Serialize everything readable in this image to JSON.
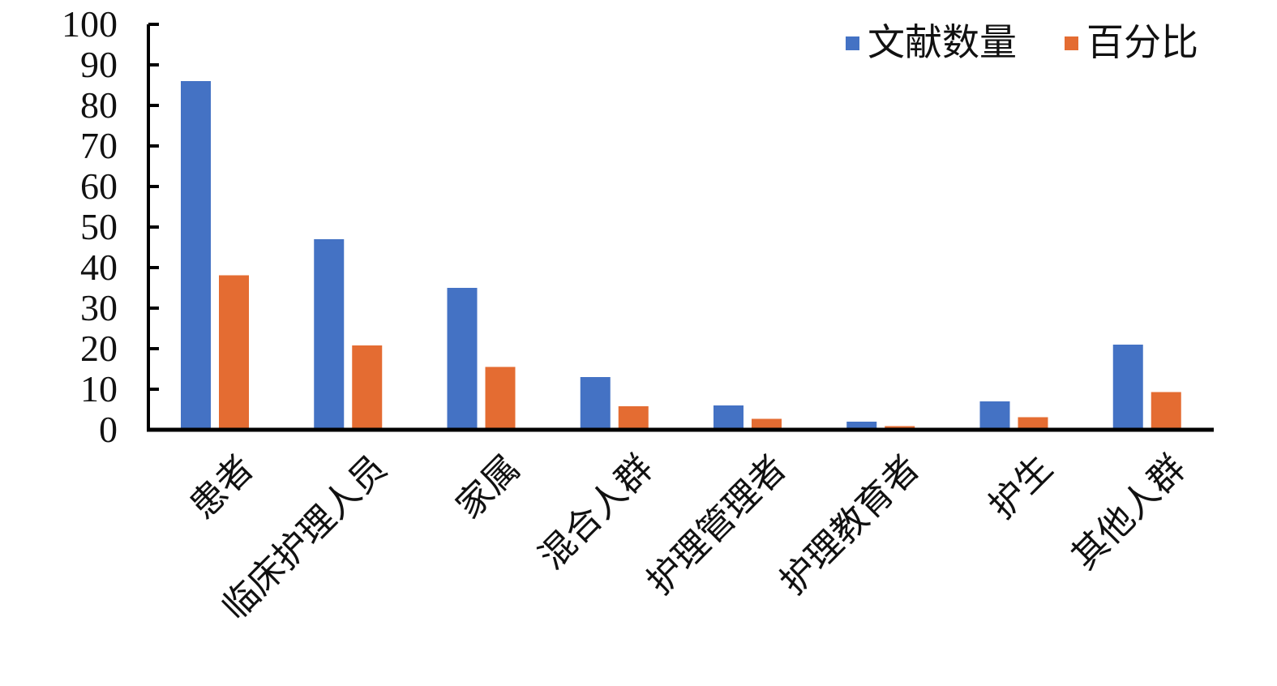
{
  "chart_data": {
    "type": "bar",
    "categories": [
      "患者",
      "临床护理人员",
      "家属",
      "混合人群",
      "护理管理者",
      "护理教育者",
      "护生",
      "其他人群"
    ],
    "series": [
      {
        "name": "文献数量",
        "color": "#4472C4",
        "values": [
          86,
          47,
          35,
          13,
          6,
          2,
          7,
          21
        ]
      },
      {
        "name": "百分比",
        "color": "#E46C32",
        "values": [
          38.1,
          20.8,
          15.5,
          5.8,
          2.7,
          0.9,
          3.1,
          9.3
        ]
      }
    ],
    "ylim": [
      0,
      100
    ],
    "yticks": [
      0,
      10,
      20,
      30,
      40,
      50,
      60,
      70,
      80,
      90,
      100
    ],
    "legend_position": "top-right",
    "grid": false
  }
}
